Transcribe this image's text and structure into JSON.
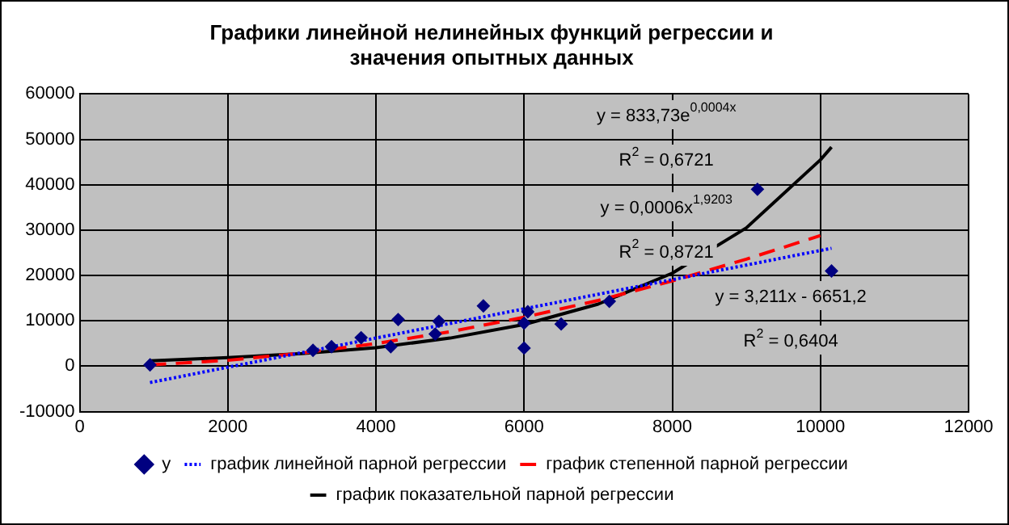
{
  "chart_data": {
    "type": "scatter",
    "title": "Графики линейной нелинейных функций регрессии и значения опытных данных",
    "xlim": [
      0,
      12000
    ],
    "xticks": [
      0,
      2000,
      4000,
      6000,
      8000,
      10000,
      12000
    ],
    "ylim": [
      -10000,
      60000
    ],
    "yticks": [
      -10000,
      0,
      10000,
      20000,
      30000,
      40000,
      50000,
      60000
    ],
    "grid": true,
    "legend": "bottom",
    "annotations": [
      "y = 833,73e$^{0,0004x}$",
      "R$^{2}$ = 0,6721",
      "y = 0,0006x$^{1,9203}$",
      "R$^{2}$ = 0,8721",
      "y = 3,211x - 6651,2",
      "R$^{2}$ = 0,6404"
    ],
    "series": [
      {
        "name": "y",
        "type": "scatter",
        "color": "#000080",
        "marker": "diamond",
        "x": [
          950,
          3150,
          3400,
          3800,
          4200,
          4300,
          4800,
          4850,
          5450,
          6000,
          6050,
          6000,
          6500,
          7150,
          9150,
          10150
        ],
        "values": [
          300,
          3500,
          4300,
          6300,
          4300,
          10300,
          7100,
          9900,
          13300,
          9500,
          12000,
          4000,
          9300,
          14300,
          39000,
          21000
        ]
      },
      {
        "name": "график линейной парной регрессии",
        "type": "line",
        "color": "#0000ff",
        "marker": "none",
        "line_style": "dotted",
        "x": [
          950,
          10150
        ],
        "values": [
          -3600,
          26000
        ]
      },
      {
        "name": "график степенной парной регрессии",
        "type": "line",
        "color": "#ff0000",
        "marker": "none",
        "line_style": "dashed",
        "x": [
          950,
          2000,
          3000,
          4000,
          5000,
          6000,
          7000,
          8000,
          9000,
          10000
        ],
        "values": [
          300,
          1300,
          2900,
          5000,
          7600,
          10800,
          14500,
          18800,
          23600,
          28800
        ]
      },
      {
        "name": "график показательной парной регрессии",
        "type": "line",
        "color": "#000000",
        "marker": "none",
        "line_style": "solid",
        "x": [
          950,
          2000,
          3000,
          4000,
          5000,
          6000,
          7000,
          8000,
          9000,
          10000,
          10150
        ],
        "values": [
          1200,
          1900,
          2800,
          4100,
          6200,
          9200,
          13700,
          20500,
          30500,
          45500,
          48300
        ]
      }
    ]
  }
}
